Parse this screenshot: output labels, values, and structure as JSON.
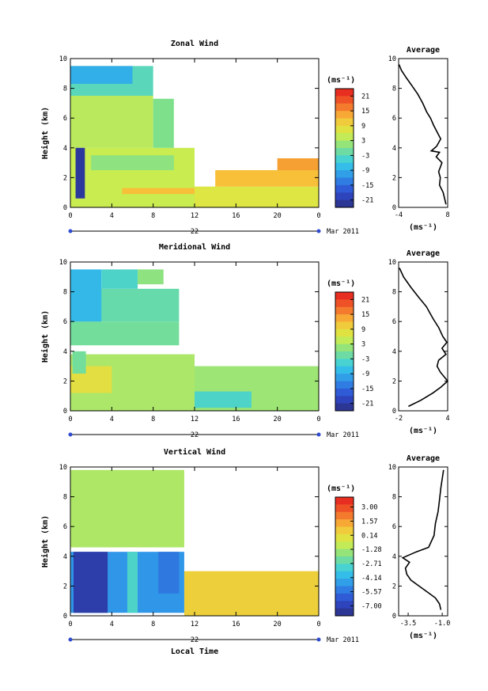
{
  "chart_data": [
    {
      "type": "heatmap",
      "title": "Zonal Wind",
      "ylabel": "Height (km)",
      "xlim": [
        0,
        24
      ],
      "ylim": [
        0,
        10
      ],
      "x_ticks": [
        "0",
        "4",
        "8",
        "12",
        "16",
        "20",
        "0"
      ],
      "y_ticks": [
        "0",
        "2",
        "4",
        "6",
        "8",
        "10"
      ],
      "date_label": "22",
      "month_label": "Mar 2011",
      "colorbar": {
        "unit": "(ms⁻¹)",
        "range": [
          -24,
          24
        ],
        "ticks": [
          "21",
          "15",
          "9",
          "3",
          "-3",
          "-9",
          "-15",
          "-21"
        ],
        "tick_values": [
          21,
          15,
          9,
          3,
          -3,
          -9,
          -15,
          -21
        ]
      },
      "profile": {
        "title": "Average",
        "xlabel": "(ms⁻¹)",
        "xlim": [
          -4,
          8
        ],
        "ylim": [
          0,
          10
        ],
        "x_ticks": [
          "-4",
          "8"
        ],
        "y_ticks": [
          "0",
          "2",
          "4",
          "6",
          "8",
          "10"
        ],
        "series": {
          "x": [
            7.6,
            6.9,
            6.0,
            6.2,
            5.8,
            6.6,
            5.2,
            6.0,
            4.0,
            5.3,
            6.3,
            4.6,
            3.8,
            2.9,
            1.9,
            0.7,
            -0.8,
            -2.1,
            -3.3,
            -3.9
          ],
          "y": [
            0.2,
            1.0,
            1.5,
            2.0,
            2.4,
            3.0,
            3.4,
            3.7,
            3.8,
            4.1,
            4.6,
            5.5,
            6.0,
            6.4,
            7.0,
            7.6,
            8.2,
            8.7,
            9.2,
            9.6
          ]
        }
      },
      "regions": [
        {
          "t": [
            0,
            12
          ],
          "h": [
            0,
            4
          ],
          "v": 5
        },
        {
          "t": [
            12,
            24
          ],
          "h": [
            0,
            1.4
          ],
          "v": 7
        },
        {
          "t": [
            14,
            24
          ],
          "h": [
            1.4,
            2.5
          ],
          "v": 12
        },
        {
          "t": [
            20,
            24
          ],
          "h": [
            2.5,
            3.3
          ],
          "v": 14
        },
        {
          "t": [
            0,
            8
          ],
          "h": [
            4,
            7.5
          ],
          "v": 4
        },
        {
          "t": [
            8,
            10
          ],
          "h": [
            4,
            7.3
          ],
          "v": 0
        },
        {
          "t": [
            0,
            8
          ],
          "h": [
            7.5,
            9.5
          ],
          "v": -3
        },
        {
          "t": [
            0,
            6
          ],
          "h": [
            8.3,
            9.5
          ],
          "v": -9
        },
        {
          "t": [
            0.5,
            1.4
          ],
          "h": [
            0.6,
            4
          ],
          "v": -22
        },
        {
          "t": [
            5,
            12
          ],
          "h": [
            0.9,
            1.3
          ],
          "v": 12
        },
        {
          "t": [
            2,
            10
          ],
          "h": [
            2.5,
            3.5
          ],
          "v": 1
        }
      ]
    },
    {
      "type": "heatmap",
      "title": "Meridional Wind",
      "ylabel": "Height (km)",
      "xlim": [
        0,
        24
      ],
      "ylim": [
        0,
        10
      ],
      "x_ticks": [
        "0",
        "4",
        "8",
        "12",
        "16",
        "20",
        "0"
      ],
      "y_ticks": [
        "0",
        "2",
        "4",
        "6",
        "8",
        "10"
      ],
      "date_label": "22",
      "month_label": "Mar 2011",
      "colorbar": {
        "unit": "(ms⁻¹)",
        "range": [
          -24,
          24
        ],
        "ticks": [
          "21",
          "15",
          "9",
          "3",
          "-3",
          "-9",
          "-15",
          "-21"
        ],
        "tick_values": [
          21,
          15,
          9,
          3,
          -3,
          -9,
          -15,
          -21
        ]
      },
      "profile": {
        "title": "Average",
        "xlabel": "(ms⁻¹)",
        "xlim": [
          -2,
          4
        ],
        "ylim": [
          0,
          10
        ],
        "x_ticks": [
          "-2",
          "4"
        ],
        "y_ticks": [
          "0",
          "2",
          "4",
          "6",
          "8",
          "10"
        ],
        "series": {
          "x": [
            -0.8,
            0.7,
            2.2,
            3.2,
            4.0,
            3.1,
            2.7,
            2.9,
            3.8,
            3.3,
            3.9,
            3.4,
            2.9,
            2.2,
            1.4,
            0.5,
            -0.5,
            -1.4,
            -1.9
          ],
          "y": [
            0.3,
            0.7,
            1.2,
            1.6,
            2.0,
            2.6,
            3.0,
            3.4,
            3.8,
            4.2,
            4.6,
            5.0,
            5.6,
            6.2,
            7.0,
            7.6,
            8.3,
            9.0,
            9.6
          ]
        }
      },
      "regions": [
        {
          "t": [
            0,
            12
          ],
          "h": [
            0,
            3.8
          ],
          "v": 3
        },
        {
          "t": [
            12,
            24
          ],
          "h": [
            0,
            3
          ],
          "v": 2
        },
        {
          "t": [
            12,
            17.5
          ],
          "h": [
            0.2,
            1.3
          ],
          "v": -4
        },
        {
          "t": [
            0,
            10.5
          ],
          "h": [
            4.4,
            6
          ],
          "v": -1
        },
        {
          "t": [
            0,
            10.5
          ],
          "h": [
            6,
            8.2
          ],
          "v": -2
        },
        {
          "t": [
            0,
            3
          ],
          "h": [
            6,
            9.5
          ],
          "v": -8
        },
        {
          "t": [
            3,
            6.5
          ],
          "h": [
            8.2,
            9.5
          ],
          "v": -4
        },
        {
          "t": [
            6.5,
            9
          ],
          "h": [
            8.5,
            9.5
          ],
          "v": 1
        },
        {
          "t": [
            0,
            4
          ],
          "h": [
            1.2,
            3
          ],
          "v": 8
        },
        {
          "t": [
            0.2,
            1.5
          ],
          "h": [
            2.5,
            4
          ],
          "v": -1
        }
      ]
    },
    {
      "type": "heatmap",
      "title": "Vertical Wind",
      "xlabel": "Local Time",
      "ylabel": "Height (km)",
      "xlim": [
        0,
        24
      ],
      "ylim": [
        0,
        10
      ],
      "x_ticks": [
        "0",
        "4",
        "8",
        "12",
        "16",
        "20",
        "0"
      ],
      "y_ticks": [
        "0",
        "2",
        "4",
        "6",
        "8",
        "10"
      ],
      "date_label": "22",
      "month_label": "Mar 2011",
      "colorbar": {
        "unit": "(ms⁻¹)",
        "range": [
          -8,
          4
        ],
        "ticks": [
          "3.00",
          "1.57",
          "0.14",
          "-1.28",
          "-2.71",
          "-4.14",
          "-5.57",
          "-7.00"
        ],
        "tick_values": [
          3.0,
          1.57,
          0.14,
          -1.28,
          -2.71,
          -4.14,
          -5.57,
          -7.0
        ]
      },
      "profile": {
        "title": "Average",
        "xlabel": "(ms⁻¹)",
        "xlim": [
          -4.2,
          -0.6
        ],
        "ylim": [
          0,
          10
        ],
        "x_ticks": [
          "-3.5",
          "-1.0"
        ],
        "y_ticks": [
          "0",
          "2",
          "4",
          "6",
          "8",
          "10"
        ],
        "series": {
          "x": [
            -1.1,
            -1.2,
            -1.5,
            -2.1,
            -2.7,
            -3.3,
            -3.6,
            -3.7,
            -3.4,
            -3.9,
            -2.9,
            -2.0,
            -1.6,
            -1.5,
            -1.3,
            -1.2,
            -1.1,
            -1.0,
            -0.9
          ],
          "y": [
            0.4,
            0.8,
            1.2,
            1.6,
            2.0,
            2.4,
            2.8,
            3.2,
            3.6,
            3.9,
            4.3,
            4.6,
            5.4,
            6.2,
            7.0,
            7.8,
            8.6,
            9.2,
            9.8
          ]
        }
      },
      "regions": [
        {
          "t": [
            11,
            24
          ],
          "h": [
            0,
            3
          ],
          "v": 0.5
        },
        {
          "t": [
            0,
            11
          ],
          "h": [
            4.6,
            9.8
          ],
          "v": -1.2
        },
        {
          "t": [
            0,
            11
          ],
          "h": [
            0.2,
            4.3
          ],
          "v": -4.8
        },
        {
          "t": [
            0.3,
            3.6
          ],
          "h": [
            0.2,
            4.3
          ],
          "v": -7.2
        },
        {
          "t": [
            5.5,
            6.5
          ],
          "h": [
            0.2,
            4.3
          ],
          "v": -3
        },
        {
          "t": [
            8.5,
            10.5
          ],
          "h": [
            1.5,
            4.3
          ],
          "v": -5.5
        }
      ]
    }
  ]
}
